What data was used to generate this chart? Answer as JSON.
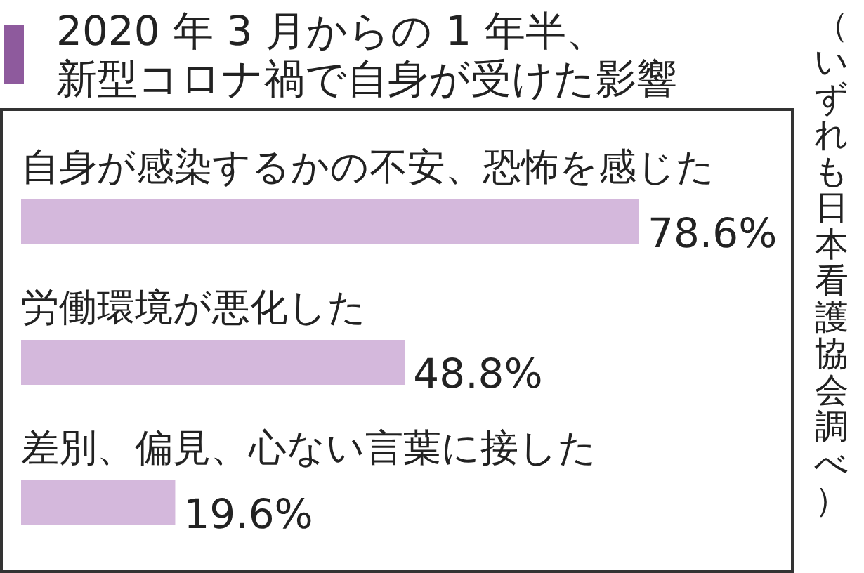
{
  "chart_data": {
    "type": "bar",
    "orientation": "horizontal",
    "title": "2020 年 3 月からの 1 年半、",
    "subtitle": "新型コロナ禍で自身が受けた影響",
    "categories": [
      "自身が感染するかの不安、恐怖を感じた",
      "労働環境が悪化した",
      "差別、偏見、心ない言葉に接した"
    ],
    "values": [
      78.6,
      48.8,
      19.6
    ],
    "color": "#d4b8dc",
    "value_labels": [
      "78.6%",
      "48.8%",
      "19.6%"
    ],
    "annotations": [
      "（いずれも日本看護協会調べ）"
    ]
  }
}
